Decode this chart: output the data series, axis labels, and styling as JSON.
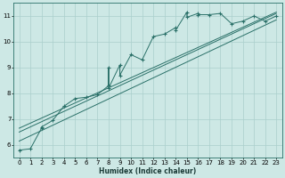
{
  "xlabel": "Humidex (Indice chaleur)",
  "bg_color": "#cde8e5",
  "line_color": "#2a7068",
  "grid_color": "#aacfcc",
  "xlim": [
    -0.5,
    23.5
  ],
  "ylim": [
    5.5,
    11.5
  ],
  "xticks": [
    0,
    1,
    2,
    3,
    4,
    5,
    6,
    7,
    8,
    9,
    10,
    11,
    12,
    13,
    14,
    15,
    16,
    17,
    18,
    19,
    20,
    21,
    22,
    23
  ],
  "yticks": [
    6,
    7,
    8,
    9,
    10,
    11
  ],
  "main_x": [
    0,
    1,
    2,
    2,
    3,
    4,
    5,
    6,
    7,
    8,
    8,
    8,
    9,
    9,
    10,
    11,
    12,
    13,
    14,
    14,
    15,
    15,
    16,
    16,
    17,
    18,
    19,
    20,
    21,
    22,
    23
  ],
  "main_y": [
    5.8,
    5.85,
    6.65,
    6.7,
    6.95,
    7.5,
    7.8,
    7.85,
    7.95,
    8.3,
    9.0,
    8.2,
    9.1,
    8.7,
    9.5,
    9.3,
    10.2,
    10.3,
    10.55,
    10.45,
    11.15,
    10.95,
    11.1,
    11.05,
    11.05,
    11.1,
    10.7,
    10.8,
    11.0,
    10.8,
    11.0
  ],
  "line1_x": [
    0,
    23
  ],
  "line1_y": [
    6.15,
    10.85
  ],
  "line2_x": [
    0,
    23
  ],
  "line2_y": [
    6.5,
    11.1
  ],
  "line3_x": [
    0,
    23
  ],
  "line3_y": [
    6.65,
    11.15
  ],
  "xlabel_fontsize": 5.5,
  "tick_fontsize": 5.0,
  "xlabel_bold": true
}
